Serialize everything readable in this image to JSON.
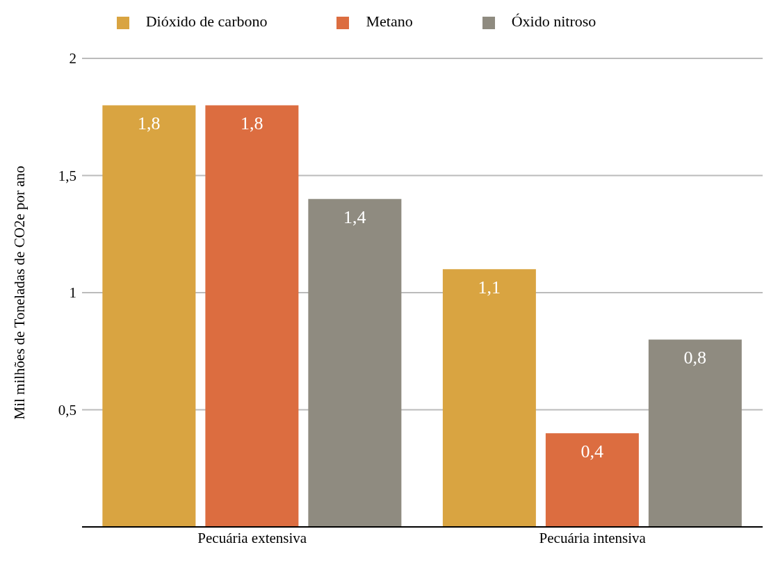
{
  "chart_data": {
    "type": "bar",
    "ylabel": "Mil milhões de Toneladas de CO2e por ano",
    "categories": [
      "Pecuária extensiva",
      "Pecuária intensiva"
    ],
    "series": [
      {
        "name": "Dióxido de carbono",
        "color": "#d9a441",
        "values": [
          1.8,
          1.1
        ],
        "value_labels": [
          "1,8",
          "1,1"
        ]
      },
      {
        "name": "Metano",
        "color": "#dc6d40",
        "values": [
          1.8,
          0.4
        ],
        "value_labels": [
          "1,8",
          "0,4"
        ]
      },
      {
        "name": "Óxido nitroso",
        "color": "#8f8b80",
        "values": [
          1.4,
          0.8
        ],
        "value_labels": [
          "1,4",
          "0,8"
        ]
      }
    ],
    "ylim": [
      0,
      2
    ],
    "yticks": [
      {
        "value": 0,
        "label": null
      },
      {
        "value": 0.5,
        "label": "0,5"
      },
      1,
      {
        "value": 1.5,
        "label": "1,5"
      },
      2
    ],
    "grid": "y",
    "legend": "top"
  }
}
